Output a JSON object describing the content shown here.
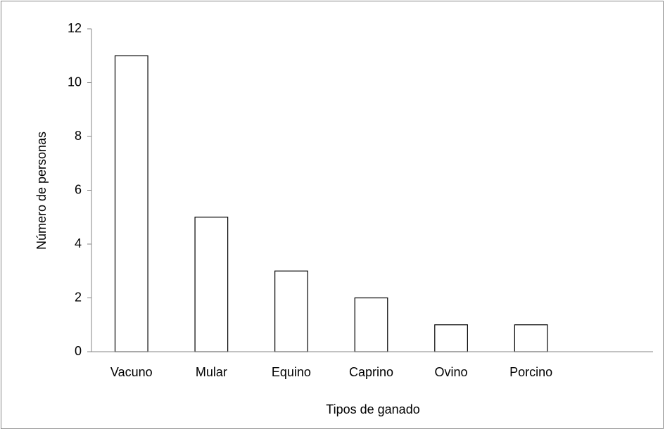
{
  "chart_data": {
    "type": "bar",
    "categories": [
      "Vacuno",
      "Mular",
      "Equino",
      "Caprino",
      "Ovino",
      "Porcino",
      null
    ],
    "values": [
      11,
      5,
      3,
      2,
      1,
      1,
      null
    ],
    "color": "#ffffff",
    "ylim": [
      0,
      12
    ],
    "yticks": [
      0,
      2,
      4,
      6,
      8,
      10,
      12
    ],
    "grid": false,
    "x_label": "Tipos de ganado",
    "y_label": "Número de personas"
  }
}
